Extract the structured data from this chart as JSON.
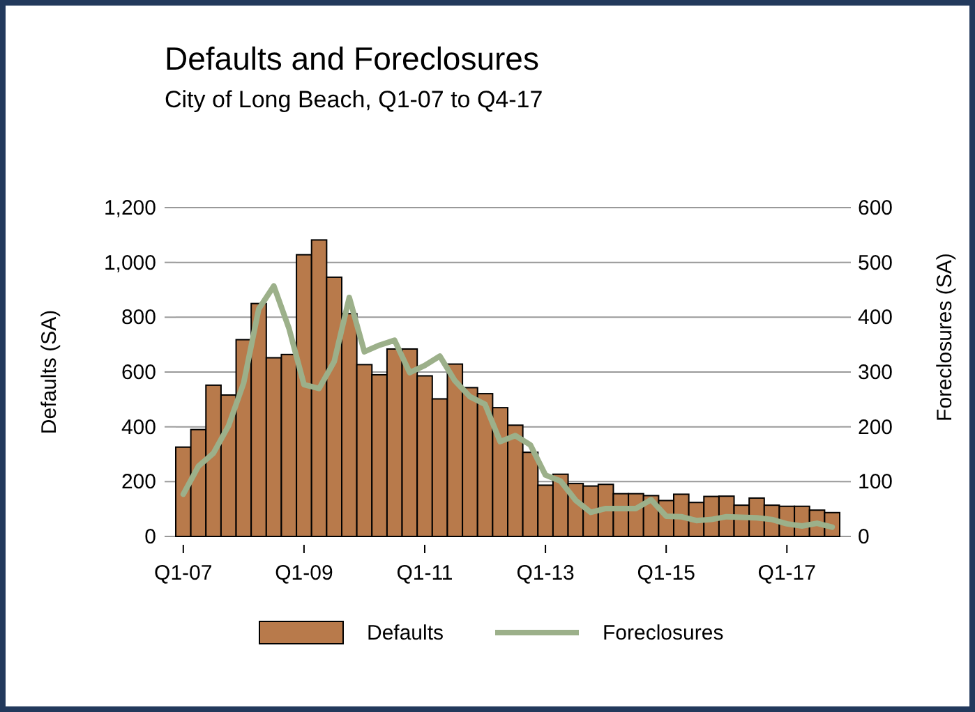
{
  "chart_data": {
    "type": "bar",
    "title": "Defaults and Foreclosures",
    "subtitle": "City of Long Beach, Q1-07 to Q4-17",
    "ylabel": "Defaults (SA)",
    "y2label": "Foreclosures (SA)",
    "categories": [
      "Q1-07",
      null,
      null,
      null,
      null,
      null,
      null,
      null,
      "Q1-09",
      null,
      null,
      null,
      null,
      null,
      null,
      null,
      "Q1-11",
      null,
      null,
      null,
      null,
      null,
      null,
      null,
      "Q1-13",
      null,
      null,
      null,
      null,
      null,
      null,
      null,
      "Q1-15",
      null,
      null,
      null,
      null,
      null,
      null,
      null,
      "Q1-17",
      null,
      null,
      null
    ],
    "series": [
      {
        "name": "Defaults",
        "color": "#b87a4b",
        "values": [
          326,
          390,
          552,
          516,
          718,
          850,
          652,
          664,
          1028,
          1082,
          946,
          813,
          627,
          590,
          684,
          684,
          586,
          502,
          629,
          543,
          521,
          470,
          406,
          307,
          187,
          227,
          193,
          184,
          190,
          156,
          156,
          149,
          131,
          154,
          124,
          146,
          147,
          114,
          140,
          114,
          110,
          110,
          96,
          87
        ]
      },
      {
        "name": "Foreclosures",
        "type": "line",
        "axis": "y2",
        "color": "#9cb08a",
        "values": [
          77,
          128,
          152,
          202,
          280,
          415,
          457,
          380,
          277,
          270,
          319,
          436,
          337,
          349,
          358,
          299,
          312,
          329,
          284,
          255,
          241,
          173,
          184,
          167,
          112,
          101,
          66,
          44,
          51,
          51,
          51,
          67,
          37,
          36,
          29,
          31,
          36,
          35,
          34,
          31,
          23,
          19,
          24,
          17
        ]
      }
    ],
    "ylim": [
      0,
      1200
    ],
    "yticks": [
      0,
      200,
      400,
      600,
      800,
      {
        "value": 1000,
        "label": "1,000"
      },
      {
        "value": 1200,
        "label": "1,200"
      }
    ],
    "y2lim": [
      0,
      600
    ],
    "y2ticks": [
      0,
      100,
      200,
      300,
      400,
      500,
      600
    ],
    "grid": "y",
    "legend": "bottom"
  }
}
